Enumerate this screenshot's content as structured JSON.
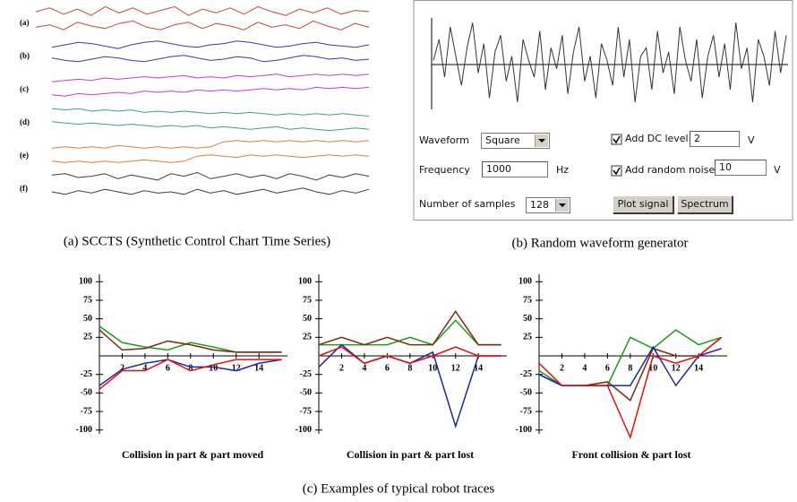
{
  "chart_data": [
    {
      "type": "ridgeline",
      "caption": "(a) SCCTS (Synthetic Control Chart Time Series)",
      "ylim": [
        0,
        10
      ],
      "series": [
        {
          "name": "(a)",
          "color": "#c04848",
          "lines": [
            [
              5,
              8,
              3,
              7,
              2,
              9,
              4,
              8,
              3,
              6,
              9,
              2,
              7,
              4,
              8,
              3,
              9,
              5,
              2,
              7,
              4,
              8,
              3,
              6,
              5
            ],
            [
              4,
              6,
              2,
              8,
              5,
              3,
              7,
              9,
              4,
              2,
              6,
              8,
              3,
              7,
              5,
              2,
              8,
              4,
              6,
              3,
              9,
              5,
              2,
              7,
              4
            ]
          ]
        },
        {
          "name": "(b)",
          "color": "#3a3aa8",
          "lines": [
            [
              3,
              5,
              7,
              6,
              4,
              2,
              5,
              7,
              8,
              6,
              4,
              3,
              5,
              6,
              8,
              7,
              5,
              3,
              4,
              6,
              7,
              5,
              4,
              3,
              5
            ],
            [
              6,
              4,
              3,
              5,
              7,
              6,
              4,
              3,
              5,
              7,
              8,
              6,
              4,
              5,
              7,
              6,
              3,
              4,
              6,
              8,
              7,
              5,
              6,
              4,
              5
            ]
          ]
        },
        {
          "name": "(c)",
          "color": "#c040c0",
          "lines": [
            [
              2,
              3,
              4,
              3,
              5,
              4,
              5,
              6,
              5,
              6,
              7,
              5,
              6,
              5,
              7,
              6,
              7,
              8,
              6,
              7,
              8,
              7,
              8,
              7,
              8
            ],
            [
              3,
              2,
              4,
              3,
              4,
              5,
              4,
              6,
              5,
              6,
              5,
              7,
              6,
              7,
              6,
              7,
              8,
              7,
              8,
              7,
              9,
              8,
              9,
              8,
              9
            ]
          ]
        },
        {
          "name": "(d)",
          "color": "#40a080",
          "lines": [
            [
              7,
              6,
              7,
              5,
              6,
              5,
              6,
              4,
              5,
              4,
              5,
              4,
              3,
              4,
              3,
              4,
              3,
              2,
              3,
              2,
              3,
              2,
              3,
              2,
              1
            ],
            [
              8,
              7,
              6,
              7,
              6,
              5,
              6,
              5,
              4,
              5,
              4,
              5,
              3,
              4,
              3,
              2,
              3,
              4,
              2,
              3,
              2,
              1,
              2,
              3,
              2
            ]
          ]
        },
        {
          "name": "(e)",
          "color": "#d08040",
          "lines": [
            [
              2,
              3,
              2,
              3,
              2,
              4,
              3,
              2,
              3,
              2,
              3,
              2,
              3,
              7,
              8,
              7,
              8,
              7,
              8,
              7,
              8,
              7,
              8,
              7,
              8
            ],
            [
              3,
              2,
              3,
              2,
              3,
              2,
              3,
              4,
              3,
              2,
              3,
              7,
              8,
              7,
              6,
              8,
              7,
              8,
              7,
              6,
              7,
              8,
              7,
              8,
              7
            ]
          ]
        },
        {
          "name": "(f)",
          "color": "#404040",
          "lines": [
            [
              7,
              8,
              5,
              6,
              8,
              4,
              7,
              5,
              3,
              8,
              6,
              9,
              4,
              6,
              8,
              5,
              7,
              4,
              8,
              6,
              3,
              7,
              5,
              8,
              6
            ],
            [
              5,
              3,
              6,
              4,
              7,
              5,
              3,
              6,
              4,
              5,
              3,
              7,
              4,
              6,
              3,
              5,
              7,
              4,
              6,
              8,
              5,
              3,
              6,
              4,
              7
            ]
          ]
        }
      ]
    },
    {
      "type": "waveform",
      "caption": "(b) Random waveform generator",
      "ylim": [
        -1.2,
        1.2
      ],
      "color": "#333333",
      "values": [
        0.1,
        0.6,
        -0.3,
        0.9,
        0.2,
        -0.5,
        0.4,
        1.0,
        -0.2,
        0.5,
        -0.8,
        0.3,
        0.7,
        -0.4,
        0.2,
        -0.9,
        0.6,
        0.1,
        -0.3,
        0.8,
        -0.6,
        0.4,
        -0.1,
        0.7,
        -0.7,
        0.3,
        0.9,
        -0.4,
        0.2,
        -0.8,
        0.5,
        0.1,
        -0.5,
        0.9,
        -0.3,
        0.6,
        -0.9,
        0.2,
        0.4,
        -0.6,
        0.8,
        -0.2,
        0.3,
        -0.7,
        0.9,
        0.1,
        -0.4,
        0.6,
        -0.8,
        0.2,
        0.7,
        -0.3,
        0.5,
        -0.6,
        1.0,
        -0.1,
        0.4,
        -0.9,
        0.6,
        0.2,
        -0.5,
        0.8,
        -0.2,
        0.7
      ]
    },
    {
      "type": "line",
      "title": "Collision in part & part moved",
      "x": [
        0,
        2,
        4,
        6,
        8,
        10,
        12,
        14,
        16
      ],
      "xlim": [
        0,
        16.5
      ],
      "ylim": [
        -110,
        110
      ],
      "xticks": [
        2,
        4,
        6,
        8,
        10,
        12,
        14
      ],
      "yticks": [
        100,
        75,
        50,
        25,
        -25,
        -50,
        -75,
        -100
      ],
      "series": [
        {
          "color": "#1a9a1a",
          "values": [
            40,
            18,
            12,
            8,
            18,
            12,
            5,
            5,
            5
          ]
        },
        {
          "color": "#7a2a10",
          "values": [
            35,
            8,
            10,
            20,
            15,
            8,
            5,
            5,
            5
          ]
        },
        {
          "color": "#2424a0",
          "values": [
            -40,
            -18,
            -10,
            -5,
            -15,
            -15,
            -20,
            -10,
            -5
          ]
        },
        {
          "color": "#e01010",
          "values": [
            -45,
            -20,
            -20,
            -5,
            -20,
            -12,
            -5,
            -5,
            -5
          ]
        }
      ]
    },
    {
      "type": "line",
      "title": "Collision in part & part lost",
      "x": [
        0,
        2,
        4,
        6,
        8,
        10,
        12,
        14,
        16
      ],
      "xlim": [
        0,
        16.5
      ],
      "ylim": [
        -110,
        110
      ],
      "xticks": [
        2,
        4,
        6,
        8,
        10,
        12,
        14
      ],
      "yticks": [
        100,
        75,
        50,
        25,
        -25,
        -50,
        -75,
        -100
      ],
      "series": [
        {
          "color": "#1a9a1a",
          "values": [
            15,
            15,
            15,
            15,
            25,
            15,
            48,
            15,
            15
          ]
        },
        {
          "color": "#7a2a10",
          "values": [
            15,
            25,
            15,
            25,
            15,
            15,
            60,
            15,
            15
          ]
        },
        {
          "color": "#2424a0",
          "values": [
            -15,
            15,
            -10,
            0,
            -10,
            5,
            -95,
            0,
            0
          ]
        },
        {
          "color": "#e01010",
          "values": [
            0,
            12,
            -10,
            0,
            -10,
            0,
            12,
            0,
            0
          ]
        }
      ]
    },
    {
      "type": "line",
      "title": "Front collision & part lost",
      "x": [
        0,
        2,
        4,
        6,
        8,
        10,
        12,
        14,
        16
      ],
      "xlim": [
        0,
        16.5
      ],
      "ylim": [
        -110,
        110
      ],
      "xticks": [
        2,
        4,
        6,
        8,
        10,
        12,
        14
      ],
      "yticks": [
        100,
        75,
        50,
        25,
        -25,
        -50,
        -75,
        -100
      ],
      "series": [
        {
          "color": "#1a9a1a",
          "values": [
            -20,
            -40,
            -40,
            -40,
            25,
            10,
            35,
            15,
            25
          ]
        },
        {
          "color": "#7a2a10",
          "values": [
            -25,
            -40,
            -40,
            -35,
            -60,
            10,
            0,
            0,
            25
          ]
        },
        {
          "color": "#2424a0",
          "values": [
            -25,
            -40,
            -40,
            -40,
            -40,
            12,
            -40,
            0,
            10
          ]
        },
        {
          "color": "#e01010",
          "values": [
            -10,
            -40,
            -40,
            -40,
            -110,
            0,
            -10,
            0,
            25
          ]
        }
      ]
    }
  ],
  "form": {
    "waveform_label": "Waveform",
    "waveform_value": "Square",
    "frequency_label": "Frequency",
    "frequency_value": "1000",
    "frequency_unit": "Hz",
    "samples_label": "Number of samples",
    "samples_value": "128",
    "dc_label": "Add DC level",
    "dc_value": "2",
    "dc_unit": "V",
    "noise_label": "Add random noise",
    "noise_value": "10",
    "noise_unit": "V",
    "plot_button": "Plot signal",
    "spectrum_button": "Spectrum"
  },
  "caption": "(c) Examples of typical robot traces"
}
